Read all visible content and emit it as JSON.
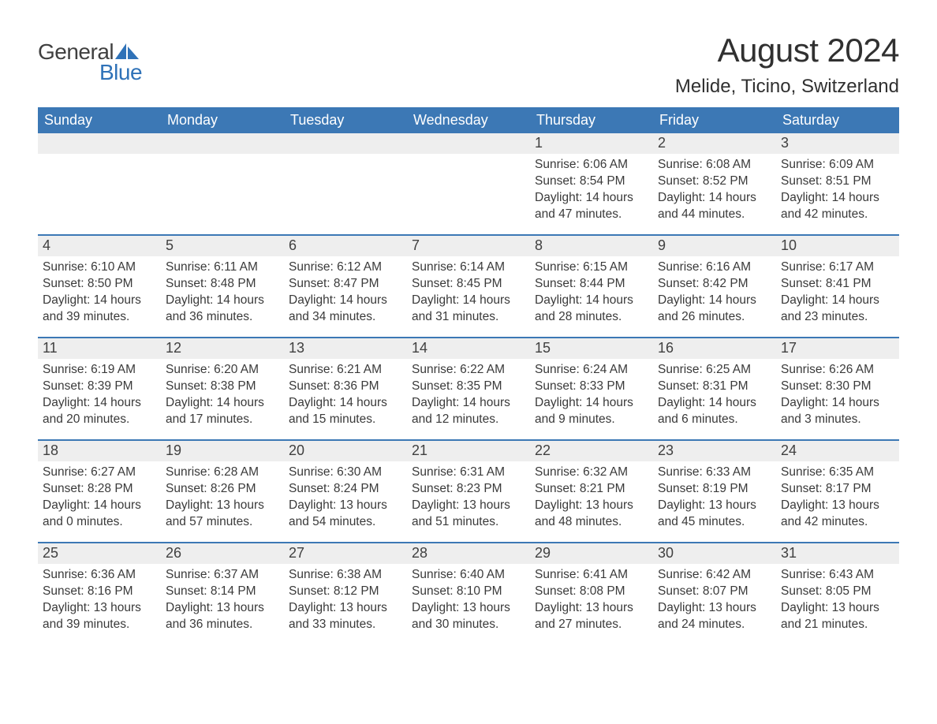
{
  "logo": {
    "text_general": "General",
    "text_blue": "Blue",
    "sail_color": "#2f72b8"
  },
  "header": {
    "month_title": "August 2024",
    "location": "Melide, Ticino, Switzerland"
  },
  "colors": {
    "header_bar": "#3c78b5",
    "header_text": "#ffffff",
    "daynum_bg": "#eeeeee",
    "week_border": "#3c78b5",
    "text": "#3a3a3a",
    "background": "#ffffff"
  },
  "weekdays": [
    "Sunday",
    "Monday",
    "Tuesday",
    "Wednesday",
    "Thursday",
    "Friday",
    "Saturday"
  ],
  "weeks": [
    [
      {
        "day": "",
        "sunrise": "",
        "sunset": "",
        "daylight": ""
      },
      {
        "day": "",
        "sunrise": "",
        "sunset": "",
        "daylight": ""
      },
      {
        "day": "",
        "sunrise": "",
        "sunset": "",
        "daylight": ""
      },
      {
        "day": "",
        "sunrise": "",
        "sunset": "",
        "daylight": ""
      },
      {
        "day": "1",
        "sunrise": "Sunrise: 6:06 AM",
        "sunset": "Sunset: 8:54 PM",
        "daylight": "Daylight: 14 hours and 47 minutes."
      },
      {
        "day": "2",
        "sunrise": "Sunrise: 6:08 AM",
        "sunset": "Sunset: 8:52 PM",
        "daylight": "Daylight: 14 hours and 44 minutes."
      },
      {
        "day": "3",
        "sunrise": "Sunrise: 6:09 AM",
        "sunset": "Sunset: 8:51 PM",
        "daylight": "Daylight: 14 hours and 42 minutes."
      }
    ],
    [
      {
        "day": "4",
        "sunrise": "Sunrise: 6:10 AM",
        "sunset": "Sunset: 8:50 PM",
        "daylight": "Daylight: 14 hours and 39 minutes."
      },
      {
        "day": "5",
        "sunrise": "Sunrise: 6:11 AM",
        "sunset": "Sunset: 8:48 PM",
        "daylight": "Daylight: 14 hours and 36 minutes."
      },
      {
        "day": "6",
        "sunrise": "Sunrise: 6:12 AM",
        "sunset": "Sunset: 8:47 PM",
        "daylight": "Daylight: 14 hours and 34 minutes."
      },
      {
        "day": "7",
        "sunrise": "Sunrise: 6:14 AM",
        "sunset": "Sunset: 8:45 PM",
        "daylight": "Daylight: 14 hours and 31 minutes."
      },
      {
        "day": "8",
        "sunrise": "Sunrise: 6:15 AM",
        "sunset": "Sunset: 8:44 PM",
        "daylight": "Daylight: 14 hours and 28 minutes."
      },
      {
        "day": "9",
        "sunrise": "Sunrise: 6:16 AM",
        "sunset": "Sunset: 8:42 PM",
        "daylight": "Daylight: 14 hours and 26 minutes."
      },
      {
        "day": "10",
        "sunrise": "Sunrise: 6:17 AM",
        "sunset": "Sunset: 8:41 PM",
        "daylight": "Daylight: 14 hours and 23 minutes."
      }
    ],
    [
      {
        "day": "11",
        "sunrise": "Sunrise: 6:19 AM",
        "sunset": "Sunset: 8:39 PM",
        "daylight": "Daylight: 14 hours and 20 minutes."
      },
      {
        "day": "12",
        "sunrise": "Sunrise: 6:20 AM",
        "sunset": "Sunset: 8:38 PM",
        "daylight": "Daylight: 14 hours and 17 minutes."
      },
      {
        "day": "13",
        "sunrise": "Sunrise: 6:21 AM",
        "sunset": "Sunset: 8:36 PM",
        "daylight": "Daylight: 14 hours and 15 minutes."
      },
      {
        "day": "14",
        "sunrise": "Sunrise: 6:22 AM",
        "sunset": "Sunset: 8:35 PM",
        "daylight": "Daylight: 14 hours and 12 minutes."
      },
      {
        "day": "15",
        "sunrise": "Sunrise: 6:24 AM",
        "sunset": "Sunset: 8:33 PM",
        "daylight": "Daylight: 14 hours and 9 minutes."
      },
      {
        "day": "16",
        "sunrise": "Sunrise: 6:25 AM",
        "sunset": "Sunset: 8:31 PM",
        "daylight": "Daylight: 14 hours and 6 minutes."
      },
      {
        "day": "17",
        "sunrise": "Sunrise: 6:26 AM",
        "sunset": "Sunset: 8:30 PM",
        "daylight": "Daylight: 14 hours and 3 minutes."
      }
    ],
    [
      {
        "day": "18",
        "sunrise": "Sunrise: 6:27 AM",
        "sunset": "Sunset: 8:28 PM",
        "daylight": "Daylight: 14 hours and 0 minutes."
      },
      {
        "day": "19",
        "sunrise": "Sunrise: 6:28 AM",
        "sunset": "Sunset: 8:26 PM",
        "daylight": "Daylight: 13 hours and 57 minutes."
      },
      {
        "day": "20",
        "sunrise": "Sunrise: 6:30 AM",
        "sunset": "Sunset: 8:24 PM",
        "daylight": "Daylight: 13 hours and 54 minutes."
      },
      {
        "day": "21",
        "sunrise": "Sunrise: 6:31 AM",
        "sunset": "Sunset: 8:23 PM",
        "daylight": "Daylight: 13 hours and 51 minutes."
      },
      {
        "day": "22",
        "sunrise": "Sunrise: 6:32 AM",
        "sunset": "Sunset: 8:21 PM",
        "daylight": "Daylight: 13 hours and 48 minutes."
      },
      {
        "day": "23",
        "sunrise": "Sunrise: 6:33 AM",
        "sunset": "Sunset: 8:19 PM",
        "daylight": "Daylight: 13 hours and 45 minutes."
      },
      {
        "day": "24",
        "sunrise": "Sunrise: 6:35 AM",
        "sunset": "Sunset: 8:17 PM",
        "daylight": "Daylight: 13 hours and 42 minutes."
      }
    ],
    [
      {
        "day": "25",
        "sunrise": "Sunrise: 6:36 AM",
        "sunset": "Sunset: 8:16 PM",
        "daylight": "Daylight: 13 hours and 39 minutes."
      },
      {
        "day": "26",
        "sunrise": "Sunrise: 6:37 AM",
        "sunset": "Sunset: 8:14 PM",
        "daylight": "Daylight: 13 hours and 36 minutes."
      },
      {
        "day": "27",
        "sunrise": "Sunrise: 6:38 AM",
        "sunset": "Sunset: 8:12 PM",
        "daylight": "Daylight: 13 hours and 33 minutes."
      },
      {
        "day": "28",
        "sunrise": "Sunrise: 6:40 AM",
        "sunset": "Sunset: 8:10 PM",
        "daylight": "Daylight: 13 hours and 30 minutes."
      },
      {
        "day": "29",
        "sunrise": "Sunrise: 6:41 AM",
        "sunset": "Sunset: 8:08 PM",
        "daylight": "Daylight: 13 hours and 27 minutes."
      },
      {
        "day": "30",
        "sunrise": "Sunrise: 6:42 AM",
        "sunset": "Sunset: 8:07 PM",
        "daylight": "Daylight: 13 hours and 24 minutes."
      },
      {
        "day": "31",
        "sunrise": "Sunrise: 6:43 AM",
        "sunset": "Sunset: 8:05 PM",
        "daylight": "Daylight: 13 hours and 21 minutes."
      }
    ]
  ]
}
